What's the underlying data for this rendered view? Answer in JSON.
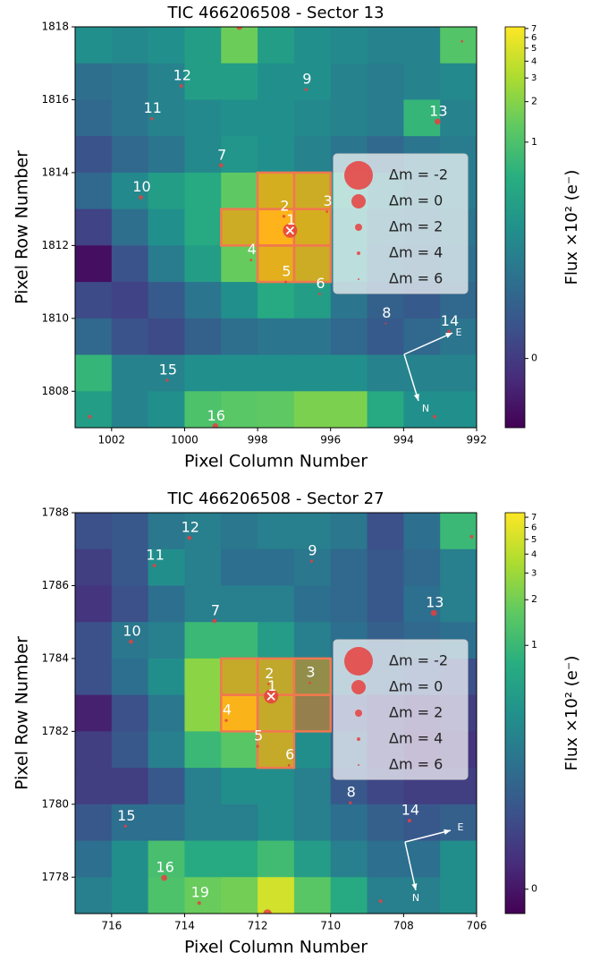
{
  "chart_data": [
    {
      "type": "heatmap",
      "title": "TIC 466206508 - Sector 13",
      "xlabel": "Pixel Column Number",
      "ylabel": "Pixel Row Number",
      "colorbar_label": "Flux ×10² (e⁻)",
      "xlim": [
        1003,
        992
      ],
      "ylim": [
        1807,
        1818
      ],
      "xticks": [
        1002,
        1000,
        998,
        996,
        994,
        992
      ],
      "yticks": [
        1808,
        1810,
        1812,
        1814,
        1816,
        1818
      ],
      "clim": [
        -0.32,
        7.2
      ],
      "cticks": [
        0,
        1,
        2,
        3,
        4,
        5,
        6,
        7
      ],
      "z": [
        [
          0.6,
          0.55,
          0.6,
          0.7,
          1.5,
          0.7,
          0.6,
          0.55,
          0.5,
          0.5,
          1.1
        ],
        [
          0.35,
          0.4,
          0.5,
          0.7,
          0.7,
          0.6,
          0.6,
          0.5,
          0.45,
          0.5,
          0.55
        ],
        [
          0.3,
          0.4,
          0.5,
          0.55,
          0.6,
          0.6,
          0.55,
          0.5,
          0.45,
          0.9,
          0.5
        ],
        [
          0.15,
          0.3,
          0.4,
          0.55,
          0.65,
          0.6,
          0.5,
          0.4,
          0.3,
          0.4,
          0.45
        ],
        [
          0.3,
          0.55,
          0.7,
          0.8,
          1.3,
          3,
          2.5,
          0.7,
          0.5,
          0.4,
          0.45
        ],
        [
          0.05,
          0.35,
          0.6,
          0.8,
          2.5,
          7,
          3,
          0.6,
          0.4,
          0.35,
          0.4
        ],
        [
          -0.25,
          0.15,
          0.45,
          0.7,
          1.4,
          4,
          2.5,
          0.6,
          0.35,
          0.3,
          0.35
        ],
        [
          0.1,
          0.05,
          0.2,
          0.4,
          0.6,
          0.8,
          0.7,
          0.4,
          0.25,
          0.2,
          0.3
        ],
        [
          0.3,
          0.15,
          0.1,
          0.25,
          0.35,
          0.4,
          0.4,
          0.3,
          0.2,
          0.3,
          0.4
        ],
        [
          0.9,
          0.5,
          0.5,
          0.6,
          0.6,
          0.6,
          0.6,
          0.6,
          0.5,
          0.5,
          0.5
        ],
        [
          0.7,
          0.5,
          0.6,
          1.0,
          1.2,
          1.3,
          1.8,
          1.8,
          0.8,
          0.6,
          0.6
        ]
      ],
      "aperture": [
        [
          997,
          1813
        ],
        [
          996,
          1813
        ],
        [
          998,
          1812
        ],
        [
          997,
          1812
        ],
        [
          996,
          1812
        ],
        [
          997,
          1811
        ],
        [
          996,
          1811
        ]
      ],
      "aperture_color": "#ff7f0e",
      "star_color": "#e8403e",
      "stars": {
        "labels": [
          "1",
          "2",
          "3",
          "4",
          "5",
          "6",
          "7",
          "8",
          "9",
          "10",
          "11",
          "12",
          "13",
          "14",
          "15",
          "16",
          null,
          null,
          null,
          null
        ],
        "x": [
          997.11,
          997.28,
          996.1,
          998.18,
          997.23,
          996.3,
          999.0,
          994.49,
          996.67,
          1001.2,
          1000.9,
          1000.09,
          993.07,
          992.76,
          1000.48,
          999.16,
          998.5,
          992.4,
          1002.6,
          993.15
        ],
        "y": [
          1812.41,
          1812.8,
          1812.93,
          1811.6,
          1811.0,
          1810.67,
          1814.2,
          1809.86,
          1816.28,
          1813.32,
          1815.48,
          1816.38,
          1815.4,
          1809.64,
          1808.3,
          1807.04,
          1818.0,
          1817.6,
          1807.3,
          1807.3
        ],
        "dm": [
          0,
          4.5,
          5,
          5,
          5,
          5,
          3.5,
          6,
          4.5,
          3.5,
          4.5,
          4,
          2.5,
          4,
          4.5,
          2.5,
          2.5,
          5,
          4,
          4
        ]
      },
      "legend": {
        "labels": [
          "Δm = -2",
          "Δm = 0",
          "Δm = 2",
          "Δm = 4",
          "Δm = 6"
        ],
        "values": [
          -2,
          0,
          2,
          4,
          6
        ]
      },
      "compass": {
        "east": "E",
        "north": "N"
      }
    },
    {
      "type": "heatmap",
      "title": "TIC 466206508 - Sector 27",
      "xlabel": "Pixel Column Number",
      "ylabel": "Pixel Row Number",
      "colorbar_label": "Flux ×10² (e⁻)",
      "xlim": [
        717,
        706
      ],
      "ylim": [
        1777,
        1788
      ],
      "xticks": [
        716,
        714,
        712,
        710,
        708,
        706
      ],
      "yticks": [
        1778,
        1780,
        1782,
        1784,
        1786,
        1788
      ],
      "clim": [
        -0.1,
        7.5
      ],
      "cticks": [
        0,
        1,
        2,
        3,
        4,
        5,
        6,
        7
      ],
      "z": [
        [
          0.3,
          0.35,
          0.55,
          0.6,
          0.55,
          0.6,
          0.6,
          0.55,
          0.3,
          0.5,
          1.0
        ],
        [
          0.2,
          0.35,
          0.7,
          0.6,
          0.5,
          0.5,
          0.55,
          0.45,
          0.35,
          0.45,
          0.6
        ],
        [
          0.15,
          0.3,
          0.5,
          0.6,
          0.6,
          0.6,
          0.5,
          0.45,
          0.35,
          0.5,
          0.6
        ],
        [
          0.3,
          0.55,
          0.6,
          1.0,
          1.0,
          0.8,
          0.6,
          0.5,
          0.4,
          0.45,
          0.5
        ],
        [
          0.3,
          0.5,
          0.7,
          2.5,
          2.5,
          2.3,
          0.8,
          0.5,
          0.4,
          0.35,
          0.3
        ],
        [
          0.05,
          0.3,
          0.55,
          2.5,
          7,
          2.5,
          0.6,
          0.3,
          0.2,
          0.15,
          0.2
        ],
        [
          0.2,
          0.35,
          0.6,
          1.0,
          1.5,
          2.5,
          0.7,
          0.4,
          0.2,
          0.1,
          0.15
        ],
        [
          0.2,
          0.2,
          0.35,
          0.6,
          0.7,
          0.7,
          0.6,
          0.35,
          0.25,
          0.2,
          0.2
        ],
        [
          0.35,
          0.5,
          0.5,
          0.6,
          0.6,
          0.7,
          0.6,
          0.5,
          0.4,
          0.35,
          0.4
        ],
        [
          0.5,
          0.7,
          1.2,
          0.9,
          0.9,
          1.1,
          0.8,
          0.6,
          0.5,
          0.5,
          0.7
        ],
        [
          0.6,
          0.7,
          1.3,
          1.8,
          2.0,
          5,
          1.5,
          0.9,
          0.6,
          0.6,
          0.7
        ]
      ],
      "aperture": [
        [
          712,
          1783
        ],
        [
          711,
          1783
        ],
        [
          710,
          1783
        ],
        [
          712,
          1782
        ],
        [
          711,
          1782
        ],
        [
          710,
          1782
        ],
        [
          711,
          1781
        ]
      ],
      "aperture_color": "#ff7f0e",
      "star_color": "#e8403e",
      "stars": {
        "labels": [
          "1",
          "2",
          "3",
          "4",
          "5",
          "6",
          "7",
          "8",
          "9",
          "10",
          "11",
          "12",
          "13",
          "14",
          "15",
          "16",
          "19",
          null,
          null,
          null
        ],
        "x": [
          711.63,
          711.7,
          710.57,
          712.86,
          712.0,
          711.14,
          713.18,
          709.46,
          710.52,
          715.47,
          714.83,
          713.87,
          707.17,
          707.84,
          715.62,
          714.56,
          713.6,
          706.14,
          708.63,
          711.73
        ],
        "y": [
          1782.96,
          1783.3,
          1783.33,
          1782.3,
          1781.59,
          1781.07,
          1785.03,
          1780.04,
          1786.67,
          1784.46,
          1786.55,
          1787.31,
          1785.25,
          1779.55,
          1779.4,
          1777.98,
          1777.29,
          1787.34,
          1777.34,
          1777.0
        ],
        "dm": [
          0,
          5,
          5,
          4.5,
          4.5,
          5,
          3.5,
          4.5,
          4.5,
          3.5,
          4,
          3.5,
          2.5,
          4,
          4.5,
          2.5,
          4,
          4,
          4,
          1.5
        ]
      },
      "legend": {
        "labels": [
          "Δm = -2",
          "Δm = 0",
          "Δm = 2",
          "Δm = 4",
          "Δm = 6"
        ],
        "values": [
          -2,
          0,
          2,
          4,
          6
        ]
      },
      "compass": {
        "east": "E",
        "north": "N"
      }
    }
  ]
}
